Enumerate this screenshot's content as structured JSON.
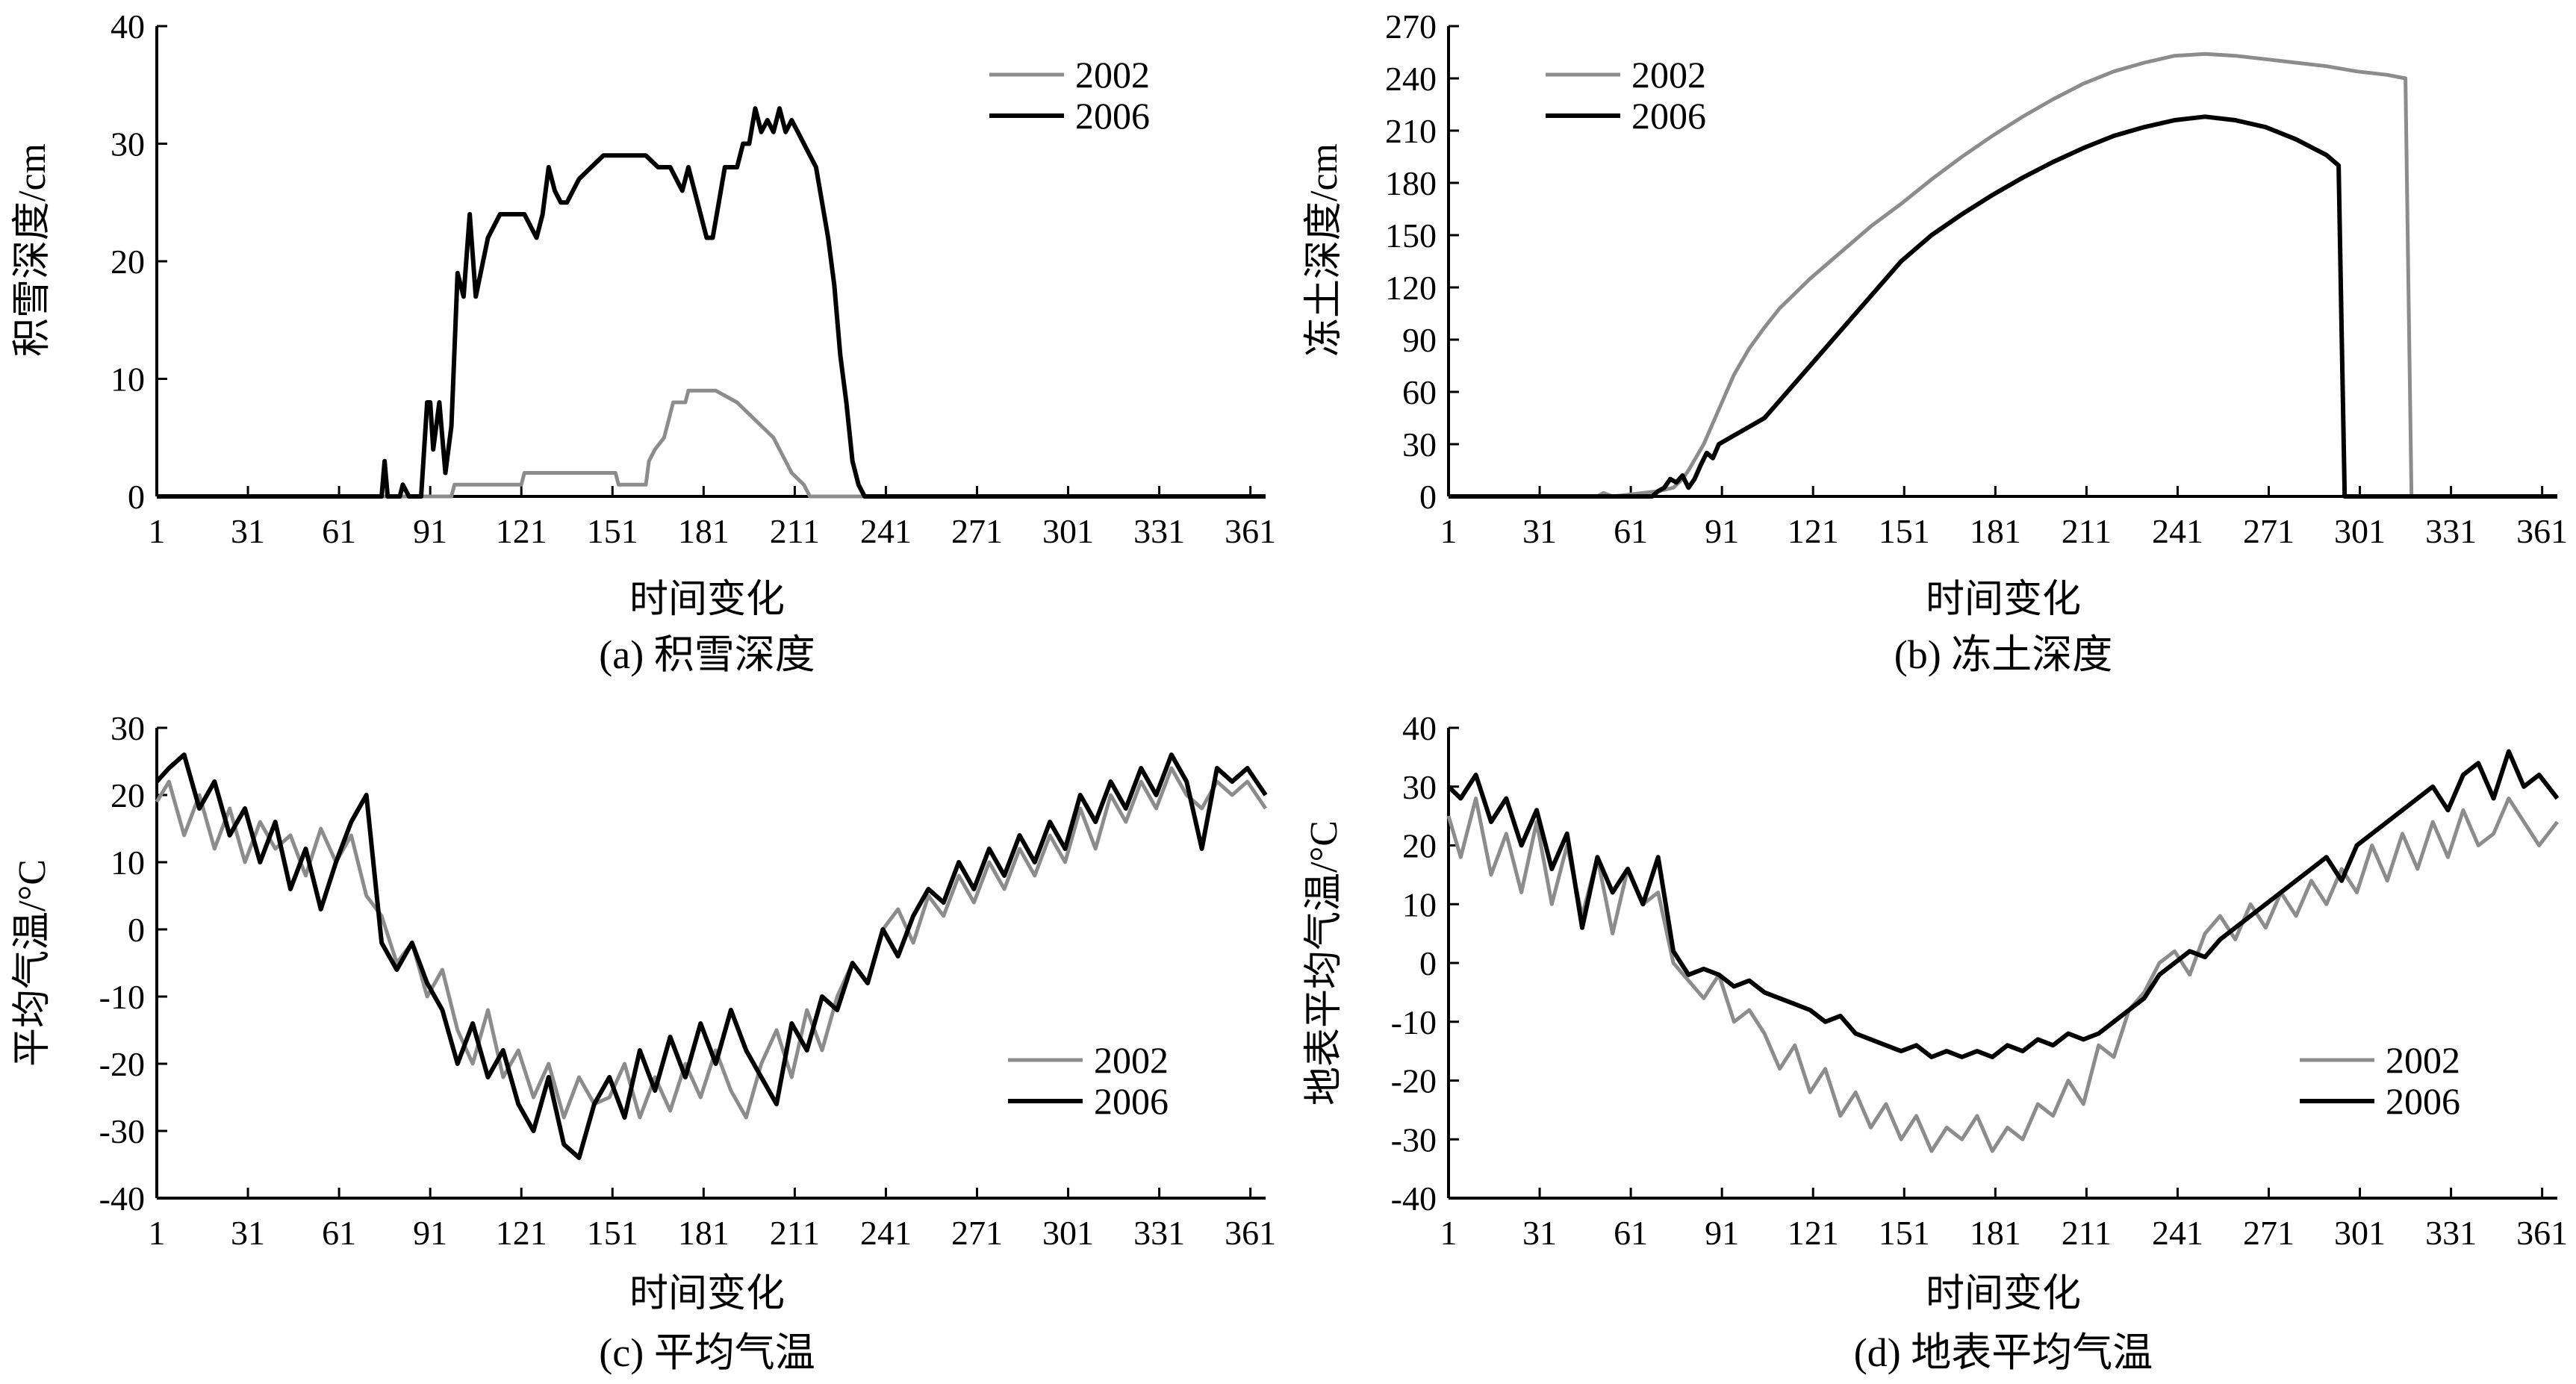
{
  "colors": {
    "series_2002": "#8c8c8c",
    "series_2006": "#000000",
    "axis": "#000000",
    "background": "#ffffff"
  },
  "chart_data": [
    {
      "type": "line",
      "caption": "(a) 积雪深度",
      "xlabel": "时间变化",
      "ylabel": "积雪深度/cm",
      "xlim": [
        1,
        366
      ],
      "ylim": [
        0,
        40
      ],
      "xticks": [
        1,
        31,
        61,
        91,
        121,
        151,
        181,
        211,
        241,
        271,
        301,
        331,
        361
      ],
      "yticks": [
        0,
        10,
        20,
        30,
        40
      ],
      "grid": false,
      "legend_position": "top-right",
      "series": [
        {
          "name": "2002",
          "x": [
            1,
            90,
            91,
            98,
            99,
            120,
            121,
            122,
            131,
            132,
            152,
            153,
            162,
            163,
            165,
            168,
            169,
            171,
            175,
            176,
            178,
            185,
            192,
            196,
            200,
            204,
            206,
            208,
            210,
            214,
            216,
            366
          ],
          "y": [
            0,
            0,
            0,
            0,
            1,
            1,
            1,
            2,
            2,
            2,
            2,
            1,
            1,
            3,
            4,
            5,
            6,
            8,
            8,
            9,
            9,
            9,
            8,
            7,
            6,
            5,
            4,
            3,
            2,
            1,
            0,
            0
          ]
        },
        {
          "name": "2006",
          "x": [
            1,
            75,
            76,
            77,
            78,
            79,
            80,
            81,
            82,
            84,
            86,
            88,
            90,
            91,
            92,
            94,
            96,
            98,
            100,
            102,
            104,
            106,
            110,
            114,
            118,
            122,
            126,
            128,
            130,
            132,
            134,
            136,
            140,
            144,
            148,
            152,
            154,
            158,
            162,
            166,
            170,
            172,
            174,
            176,
            180,
            182,
            184,
            186,
            188,
            190,
            192,
            194,
            196,
            198,
            200,
            202,
            204,
            206,
            208,
            210,
            212,
            214,
            218,
            222,
            224,
            226,
            228,
            230,
            232,
            234,
            236,
            366
          ],
          "y": [
            0,
            0,
            3,
            0,
            0,
            0,
            0,
            0,
            1,
            0,
            0,
            0,
            8,
            8,
            4,
            8,
            2,
            6,
            19,
            17,
            24,
            17,
            22,
            24,
            24,
            24,
            22,
            24,
            28,
            26,
            25,
            25,
            27,
            28,
            29,
            29,
            29,
            29,
            29,
            28,
            28,
            27,
            26,
            28,
            24,
            22,
            22,
            25,
            28,
            28,
            28,
            30,
            30,
            33,
            31,
            32,
            31,
            33,
            31,
            32,
            31,
            30,
            28,
            22,
            18,
            12,
            8,
            3,
            1,
            0,
            0,
            0
          ]
        }
      ]
    },
    {
      "type": "line",
      "caption": "(b) 冻土深度",
      "xlabel": "时间变化",
      "ylabel": "冻土深度/cm",
      "xlim": [
        1,
        366
      ],
      "ylim": [
        0,
        270
      ],
      "xticks": [
        1,
        31,
        61,
        91,
        121,
        151,
        181,
        211,
        241,
        271,
        301,
        331,
        361
      ],
      "yticks": [
        0,
        30,
        60,
        90,
        120,
        150,
        180,
        210,
        240,
        270
      ],
      "grid": false,
      "legend_position": "top-left",
      "series": [
        {
          "name": "2002",
          "x": [
            1,
            50,
            52,
            55,
            60,
            65,
            70,
            75,
            78,
            80,
            85,
            90,
            95,
            100,
            105,
            110,
            120,
            130,
            140,
            150,
            160,
            170,
            180,
            190,
            200,
            210,
            220,
            230,
            240,
            250,
            260,
            270,
            280,
            290,
            300,
            310,
            316,
            317,
            318,
            366
          ],
          "y": [
            0,
            0,
            2,
            0,
            1,
            2,
            3,
            5,
            10,
            15,
            30,
            50,
            70,
            85,
            97,
            108,
            125,
            140,
            155,
            168,
            182,
            195,
            207,
            218,
            228,
            237,
            244,
            249,
            253,
            254,
            253,
            251,
            249,
            247,
            244,
            242,
            240,
            120,
            0,
            0
          ]
        },
        {
          "name": "2006",
          "x": [
            1,
            68,
            70,
            72,
            74,
            76,
            78,
            80,
            82,
            84,
            86,
            88,
            90,
            95,
            100,
            105,
            110,
            120,
            130,
            140,
            150,
            160,
            170,
            180,
            190,
            200,
            210,
            220,
            230,
            240,
            250,
            260,
            270,
            280,
            290,
            294,
            295,
            296,
            366
          ],
          "y": [
            0,
            0,
            3,
            5,
            10,
            8,
            12,
            5,
            10,
            18,
            25,
            22,
            30,
            35,
            40,
            45,
            55,
            75,
            95,
            115,
            135,
            150,
            162,
            173,
            183,
            192,
            200,
            207,
            212,
            216,
            218,
            216,
            212,
            205,
            196,
            190,
            95,
            0,
            0
          ]
        }
      ]
    },
    {
      "type": "line",
      "caption": "(c) 平均气温",
      "xlabel": "时间变化",
      "ylabel": "平均气温/°C",
      "xlim": [
        1,
        366
      ],
      "ylim": [
        -40,
        30
      ],
      "xticks": [
        1,
        31,
        61,
        91,
        121,
        151,
        181,
        211,
        241,
        271,
        301,
        331,
        361
      ],
      "yticks": [
        -40,
        -30,
        -20,
        -10,
        0,
        10,
        20,
        30
      ],
      "grid": false,
      "legend_position": "bottom-right",
      "series": [
        {
          "name": "2002",
          "x": [
            1,
            5,
            10,
            15,
            20,
            25,
            30,
            35,
            40,
            45,
            50,
            55,
            60,
            65,
            70,
            75,
            80,
            85,
            90,
            95,
            100,
            105,
            110,
            115,
            120,
            125,
            130,
            135,
            140,
            145,
            150,
            155,
            160,
            165,
            170,
            175,
            180,
            185,
            190,
            195,
            200,
            205,
            210,
            215,
            220,
            225,
            230,
            235,
            240,
            245,
            250,
            255,
            260,
            265,
            270,
            275,
            280,
            285,
            290,
            295,
            300,
            305,
            310,
            315,
            320,
            325,
            330,
            335,
            340,
            345,
            350,
            355,
            360,
            366
          ],
          "y": [
            19,
            22,
            14,
            20,
            12,
            18,
            10,
            16,
            12,
            14,
            8,
            15,
            10,
            14,
            5,
            2,
            -5,
            -2,
            -10,
            -6,
            -15,
            -20,
            -12,
            -22,
            -18,
            -25,
            -20,
            -28,
            -22,
            -26,
            -25,
            -20,
            -28,
            -22,
            -27,
            -20,
            -25,
            -18,
            -24,
            -28,
            -20,
            -15,
            -22,
            -12,
            -18,
            -10,
            -5,
            -8,
            0,
            3,
            -2,
            5,
            2,
            8,
            4,
            10,
            6,
            12,
            8,
            14,
            10,
            18,
            12,
            20,
            16,
            22,
            18,
            24,
            20,
            18,
            22,
            20,
            22,
            18
          ]
        },
        {
          "name": "2006",
          "x": [
            1,
            5,
            10,
            15,
            20,
            25,
            30,
            35,
            40,
            45,
            50,
            55,
            60,
            65,
            70,
            75,
            80,
            85,
            90,
            95,
            100,
            105,
            110,
            115,
            120,
            125,
            130,
            135,
            140,
            145,
            150,
            155,
            160,
            165,
            170,
            175,
            180,
            185,
            190,
            195,
            200,
            205,
            210,
            215,
            220,
            225,
            230,
            235,
            240,
            245,
            250,
            255,
            260,
            265,
            270,
            275,
            280,
            285,
            290,
            295,
            300,
            305,
            310,
            315,
            320,
            325,
            330,
            335,
            340,
            345,
            350,
            355,
            360,
            366
          ],
          "y": [
            22,
            24,
            26,
            18,
            22,
            14,
            18,
            10,
            16,
            6,
            12,
            3,
            10,
            16,
            20,
            -2,
            -6,
            -2,
            -8,
            -12,
            -20,
            -14,
            -22,
            -18,
            -26,
            -30,
            -22,
            -32,
            -34,
            -26,
            -22,
            -28,
            -18,
            -24,
            -16,
            -22,
            -14,
            -20,
            -12,
            -18,
            -22,
            -26,
            -14,
            -18,
            -10,
            -12,
            -5,
            -8,
            0,
            -4,
            2,
            6,
            4,
            10,
            6,
            12,
            8,
            14,
            10,
            16,
            12,
            20,
            16,
            22,
            18,
            24,
            20,
            26,
            22,
            12,
            24,
            22,
            24,
            20
          ]
        }
      ]
    },
    {
      "type": "line",
      "caption": "(d) 地表平均气温",
      "xlabel": "时间变化",
      "ylabel": "地表平均气温/°C",
      "xlim": [
        1,
        366
      ],
      "ylim": [
        -40,
        40
      ],
      "xticks": [
        1,
        31,
        61,
        91,
        121,
        151,
        181,
        211,
        241,
        271,
        301,
        331,
        361
      ],
      "yticks": [
        -40,
        -30,
        -20,
        -10,
        0,
        10,
        20,
        30,
        40
      ],
      "grid": false,
      "legend_position": "bottom-right",
      "series": [
        {
          "name": "2002",
          "x": [
            1,
            5,
            10,
            15,
            20,
            25,
            30,
            35,
            40,
            45,
            50,
            55,
            60,
            65,
            70,
            75,
            80,
            85,
            90,
            95,
            100,
            105,
            110,
            115,
            120,
            125,
            130,
            135,
            140,
            145,
            150,
            155,
            160,
            165,
            170,
            175,
            180,
            185,
            190,
            195,
            200,
            205,
            210,
            215,
            220,
            225,
            230,
            235,
            240,
            245,
            250,
            255,
            260,
            265,
            270,
            275,
            280,
            285,
            290,
            295,
            300,
            305,
            310,
            315,
            320,
            325,
            330,
            335,
            340,
            345,
            350,
            355,
            360,
            366
          ],
          "y": [
            25,
            18,
            28,
            15,
            22,
            12,
            24,
            10,
            20,
            8,
            18,
            5,
            16,
            10,
            12,
            0,
            -3,
            -6,
            -2,
            -10,
            -8,
            -12,
            -18,
            -14,
            -22,
            -18,
            -26,
            -22,
            -28,
            -24,
            -30,
            -26,
            -32,
            -28,
            -30,
            -26,
            -32,
            -28,
            -30,
            -24,
            -26,
            -20,
            -24,
            -14,
            -16,
            -8,
            -5,
            0,
            2,
            -2,
            5,
            8,
            4,
            10,
            6,
            12,
            8,
            14,
            10,
            16,
            12,
            20,
            14,
            22,
            16,
            24,
            18,
            26,
            20,
            22,
            28,
            24,
            20,
            24
          ]
        },
        {
          "name": "2006",
          "x": [
            1,
            5,
            10,
            15,
            20,
            25,
            30,
            35,
            40,
            45,
            50,
            55,
            60,
            65,
            70,
            75,
            80,
            85,
            90,
            95,
            100,
            105,
            110,
            115,
            120,
            125,
            130,
            135,
            140,
            145,
            150,
            155,
            160,
            165,
            170,
            175,
            180,
            185,
            190,
            195,
            200,
            205,
            210,
            215,
            220,
            225,
            230,
            235,
            240,
            245,
            250,
            255,
            260,
            265,
            270,
            275,
            280,
            285,
            290,
            295,
            300,
            305,
            310,
            315,
            320,
            325,
            330,
            335,
            340,
            345,
            350,
            355,
            360,
            366
          ],
          "y": [
            30,
            28,
            32,
            24,
            28,
            20,
            26,
            16,
            22,
            6,
            18,
            12,
            16,
            10,
            18,
            2,
            -2,
            -1,
            -2,
            -4,
            -3,
            -5,
            -6,
            -7,
            -8,
            -10,
            -9,
            -12,
            -13,
            -14,
            -15,
            -14,
            -16,
            -15,
            -16,
            -15,
            -16,
            -14,
            -15,
            -13,
            -14,
            -12,
            -13,
            -12,
            -10,
            -8,
            -6,
            -2,
            0,
            2,
            1,
            4,
            6,
            8,
            10,
            12,
            14,
            16,
            18,
            14,
            20,
            22,
            24,
            26,
            28,
            30,
            26,
            32,
            34,
            28,
            36,
            30,
            32,
            28
          ]
        }
      ]
    }
  ]
}
